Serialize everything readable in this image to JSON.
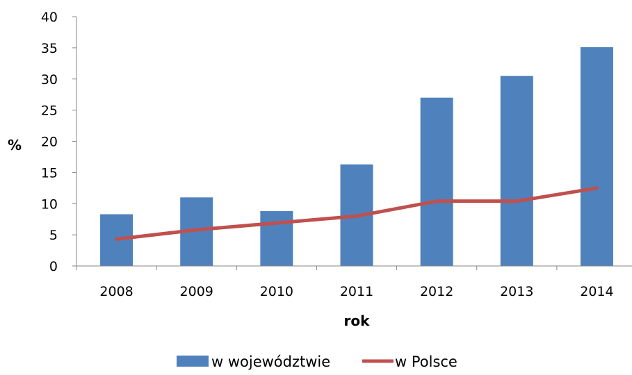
{
  "chart_data": {
    "type": "bar",
    "categories": [
      "2008",
      "2009",
      "2010",
      "2011",
      "2012",
      "2013",
      "2014"
    ],
    "series": [
      {
        "name": "w województwie",
        "type": "bar",
        "color": "#4F81BD",
        "values": [
          8.3,
          11.0,
          8.8,
          16.3,
          27.0,
          30.5,
          35.1
        ]
      },
      {
        "name": "w Polsce",
        "type": "line",
        "color": "#C0504D",
        "values": [
          4.3,
          5.8,
          6.9,
          8.0,
          10.4,
          10.4,
          12.5
        ]
      }
    ],
    "xlabel": "rok",
    "ylabel": "%",
    "ylim": [
      0,
      40
    ],
    "yticks": [
      "0",
      "5",
      "10",
      "15",
      "20",
      "25",
      "30",
      "35",
      "40"
    ],
    "grid": false,
    "legend": "bottom"
  }
}
